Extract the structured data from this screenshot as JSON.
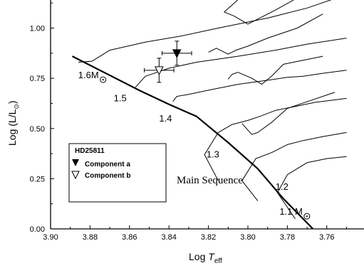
{
  "chart_data": {
    "type": "scatter",
    "xlabel": {
      "main": "Log ",
      "italic": "T",
      "sub": "eff"
    },
    "ylabel": {
      "main": "Log (L/L",
      "sun": "⊙",
      "close": ")"
    },
    "xlim": [
      3.9,
      3.75
    ],
    "ylim": [
      0.0,
      1.15
    ],
    "x_reversed": true,
    "x_ticks": [
      "3.90",
      "3.88",
      "3.86",
      "3.84",
      "3.82",
      "3.80",
      "3.78",
      "3.76"
    ],
    "y_ticks": [
      "0.00",
      "0.25",
      "0.50",
      "0.75",
      "1.00"
    ],
    "main_sequence": {
      "label": "Main Sequence",
      "points": [
        [
          3.889,
          0.86
        ],
        [
          3.873,
          0.78
        ],
        [
          3.855,
          0.69
        ],
        [
          3.84,
          0.62
        ],
        [
          3.826,
          0.56
        ],
        [
          3.81,
          0.43
        ],
        [
          3.795,
          0.3
        ],
        [
          3.782,
          0.15
        ],
        [
          3.767,
          0.0
        ]
      ]
    },
    "mass_labels": [
      {
        "text": "1.5",
        "x": 3.868,
        "y": 0.635
      },
      {
        "text": "1.4",
        "x": 3.845,
        "y": 0.535
      },
      {
        "text": "1.3",
        "x": 3.821,
        "y": 0.355
      },
      {
        "text": "1.2",
        "x": 3.786,
        "y": 0.195
      }
    ],
    "mass_labels_sun": [
      {
        "text": "1.6M",
        "x": 3.886,
        "y": 0.75
      },
      {
        "text": "1.1 M",
        "x": 3.784,
        "y": 0.07
      }
    ],
    "tracks": [
      {
        "name": "1.6",
        "points": [
          [
            3.886,
            0.83
          ],
          [
            3.879,
            0.835
          ],
          [
            3.87,
            0.89
          ],
          [
            3.852,
            0.93
          ],
          [
            3.834,
            0.96
          ],
          [
            3.815,
            1.0
          ],
          [
            3.79,
            1.05
          ],
          [
            3.77,
            1.1
          ],
          [
            3.755,
            1.15
          ]
        ]
      },
      {
        "name": "1.6 hook",
        "points": [
          [
            3.804,
            1.15
          ],
          [
            3.812,
            1.08
          ],
          [
            3.807,
            1.06
          ],
          [
            3.8,
            1.02
          ],
          [
            3.796,
            1.04
          ],
          [
            3.786,
            1.09
          ],
          [
            3.775,
            1.15
          ]
        ]
      },
      {
        "name": "1.5",
        "points": [
          [
            3.857,
            0.705
          ],
          [
            3.852,
            0.76
          ],
          [
            3.84,
            0.8
          ],
          [
            3.826,
            0.83
          ],
          [
            3.805,
            0.86
          ],
          [
            3.786,
            0.89
          ],
          [
            3.77,
            0.92
          ],
          [
            3.75,
            0.95
          ]
        ]
      },
      {
        "name": "1.5 hook",
        "points": [
          [
            3.82,
            0.88
          ],
          [
            3.816,
            0.9
          ],
          [
            3.81,
            0.87
          ],
          [
            3.806,
            0.89
          ],
          [
            3.8,
            0.91
          ],
          [
            3.79,
            0.95
          ],
          [
            3.775,
            1.0
          ],
          [
            3.762,
            1.07
          ]
        ]
      },
      {
        "name": "1.4",
        "points": [
          [
            3.838,
            0.635
          ],
          [
            3.836,
            0.66
          ],
          [
            3.83,
            0.67
          ],
          [
            3.818,
            0.695
          ],
          [
            3.805,
            0.72
          ],
          [
            3.79,
            0.74
          ],
          [
            3.78,
            0.755
          ],
          [
            3.772,
            0.76
          ],
          [
            3.762,
            0.775
          ],
          [
            3.75,
            0.79
          ]
        ]
      },
      {
        "name": "1.4 hook",
        "points": [
          [
            3.81,
            0.745
          ],
          [
            3.808,
            0.77
          ],
          [
            3.805,
            0.78
          ],
          [
            3.798,
            0.75
          ],
          [
            3.793,
            0.72
          ],
          [
            3.788,
            0.76
          ],
          [
            3.782,
            0.82
          ],
          [
            3.772,
            0.84
          ],
          [
            3.762,
            0.86
          ]
        ]
      },
      {
        "name": "1.3",
        "points": [
          [
            3.815,
            0.24
          ],
          [
            3.822,
            0.37
          ],
          [
            3.815,
            0.48
          ],
          [
            3.808,
            0.52
          ],
          [
            3.8,
            0.54
          ],
          [
            3.794,
            0.56
          ],
          [
            3.786,
            0.59
          ],
          [
            3.776,
            0.61
          ],
          [
            3.766,
            0.63
          ],
          [
            3.75,
            0.65
          ]
        ]
      },
      {
        "name": "1.3 hook",
        "points": [
          [
            3.803,
            0.525
          ],
          [
            3.798,
            0.47
          ],
          [
            3.795,
            0.48
          ],
          [
            3.788,
            0.53
          ],
          [
            3.78,
            0.6
          ],
          [
            3.768,
            0.64
          ],
          [
            3.756,
            0.68
          ]
        ]
      },
      {
        "name": "1.2",
        "points": [
          [
            3.795,
            0.14
          ],
          [
            3.803,
            0.24
          ],
          [
            3.796,
            0.35
          ],
          [
            3.788,
            0.38
          ],
          [
            3.78,
            0.42
          ],
          [
            3.772,
            0.44
          ],
          [
            3.762,
            0.46
          ],
          [
            3.75,
            0.48
          ]
        ]
      },
      {
        "name": "1.1",
        "points": [
          [
            3.776,
            0.05
          ],
          [
            3.785,
            0.18
          ],
          [
            3.78,
            0.27
          ],
          [
            3.77,
            0.33
          ],
          [
            3.76,
            0.35
          ],
          [
            3.75,
            0.36
          ]
        ]
      }
    ],
    "series": [
      {
        "name": "Component  a",
        "marker": "filled-triangle-down",
        "x": 3.836,
        "y": 0.875,
        "xerr": 0.0075,
        "yerr": 0.06
      },
      {
        "name": "Component  b",
        "marker": "open-triangle-down",
        "x": 3.845,
        "y": 0.79,
        "xerr": 0.0075,
        "yerr": 0.06
      }
    ],
    "legend": {
      "title": "HD25811",
      "placement": "lower-left"
    }
  }
}
